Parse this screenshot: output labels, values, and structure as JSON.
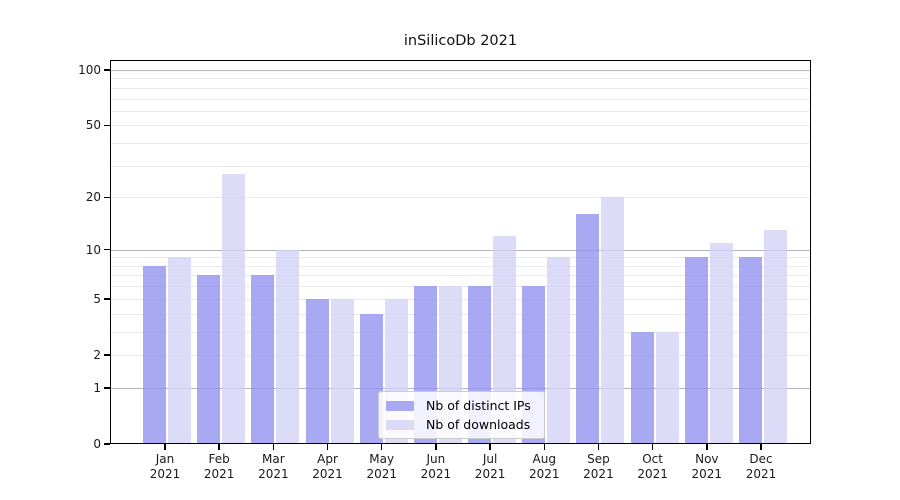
{
  "chart_data": {
    "type": "bar",
    "title": "inSilicoDb 2021",
    "categories": [
      "Jan",
      "Feb",
      "Mar",
      "Apr",
      "May",
      "Jun",
      "Jul",
      "Aug",
      "Sep",
      "Oct",
      "Nov",
      "Dec"
    ],
    "x_year_label": "2021",
    "series": [
      {
        "name": "Nb of distinct IPs",
        "color": "rgba(145,145,240,0.78)",
        "values": [
          8,
          7,
          7,
          5,
          4,
          6,
          6,
          6,
          16,
          3,
          9,
          9
        ]
      },
      {
        "name": "Nb of downloads",
        "color": "rgba(210,210,247,0.78)",
        "values": [
          9,
          27,
          10,
          5,
          5,
          6,
          12,
          9,
          20,
          3,
          11,
          13
        ]
      }
    ],
    "y_scale": "log10(1+y)",
    "ylim": [
      0,
      113
    ],
    "yticks": [
      0,
      1,
      2,
      5,
      10,
      20,
      50,
      100
    ],
    "major_gridlines": [
      1,
      10,
      100
    ],
    "minor_gridlines": [
      2,
      3,
      4,
      5,
      6,
      7,
      8,
      9,
      20,
      30,
      40,
      50,
      60,
      70,
      80,
      90
    ],
    "grid": true,
    "legend_position": "lower center"
  },
  "colors": {
    "minor_grid": "#eaeaea",
    "major_grid": "#b4b4b4",
    "axis": "#000000",
    "background": "#ffffff"
  }
}
